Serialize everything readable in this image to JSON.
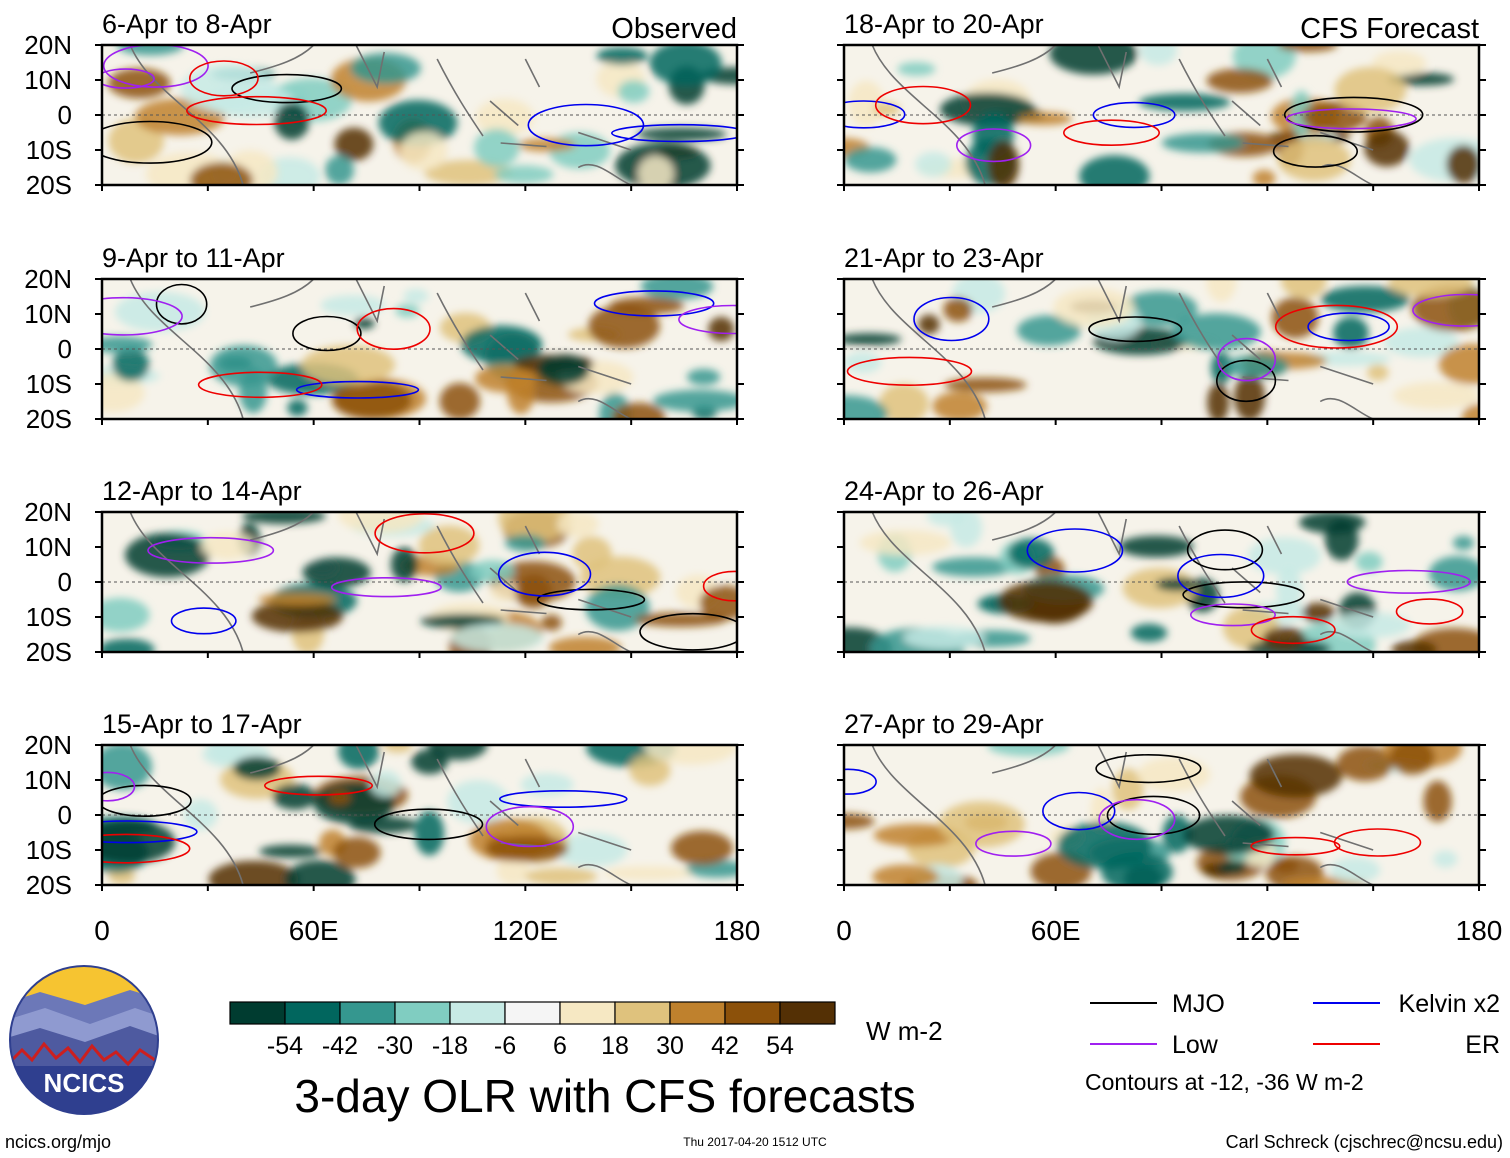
{
  "chart_data": {
    "type": "heatmap",
    "title": "3-day OLR with CFS forecasts",
    "columns": [
      {
        "label": "Observed",
        "panels": [
          "6-Apr to 8-Apr",
          "9-Apr to 11-Apr",
          "12-Apr to 14-Apr",
          "15-Apr to 17-Apr"
        ]
      },
      {
        "label": "CFS Forecast",
        "panels": [
          "18-Apr to 20-Apr",
          "21-Apr to 23-Apr",
          "24-Apr to 26-Apr",
          "27-Apr to 29-Apr"
        ]
      }
    ],
    "x_ticks": [
      "0",
      "60E",
      "120E",
      "180"
    ],
    "x_range": [
      0,
      180
    ],
    "y_ticks": [
      "20N",
      "10N",
      "0",
      "10S",
      "20S"
    ],
    "y_range": [
      -20,
      20
    ],
    "colorbar": {
      "ticks": [
        "-54",
        "-42",
        "-30",
        "-18",
        "-6",
        "6",
        "18",
        "30",
        "42",
        "54"
      ],
      "colors": [
        "#003c30",
        "#01665e",
        "#35978f",
        "#80cdc1",
        "#c7eae5",
        "#f5f5f5",
        "#f6e8c3",
        "#dfc27d",
        "#bf812d",
        "#8c510a",
        "#543005"
      ],
      "units": "W m-2"
    },
    "legend": [
      {
        "label": "MJO",
        "color": "#000000"
      },
      {
        "label": "Kelvin x2",
        "color": "#0000ee"
      },
      {
        "label": "Low",
        "color": "#a020f0"
      },
      {
        "label": "ER",
        "color": "#ee0000"
      }
    ],
    "contour_note": "Contours at -12, -36 W m-2"
  },
  "footer": {
    "url": "ncics.org/mjo",
    "timestamp": "Thu 2017-04-20 1512 UTC",
    "author": "Carl Schreck (cjschrec@ncsu.edu)",
    "logo_text": "NCICS"
  }
}
